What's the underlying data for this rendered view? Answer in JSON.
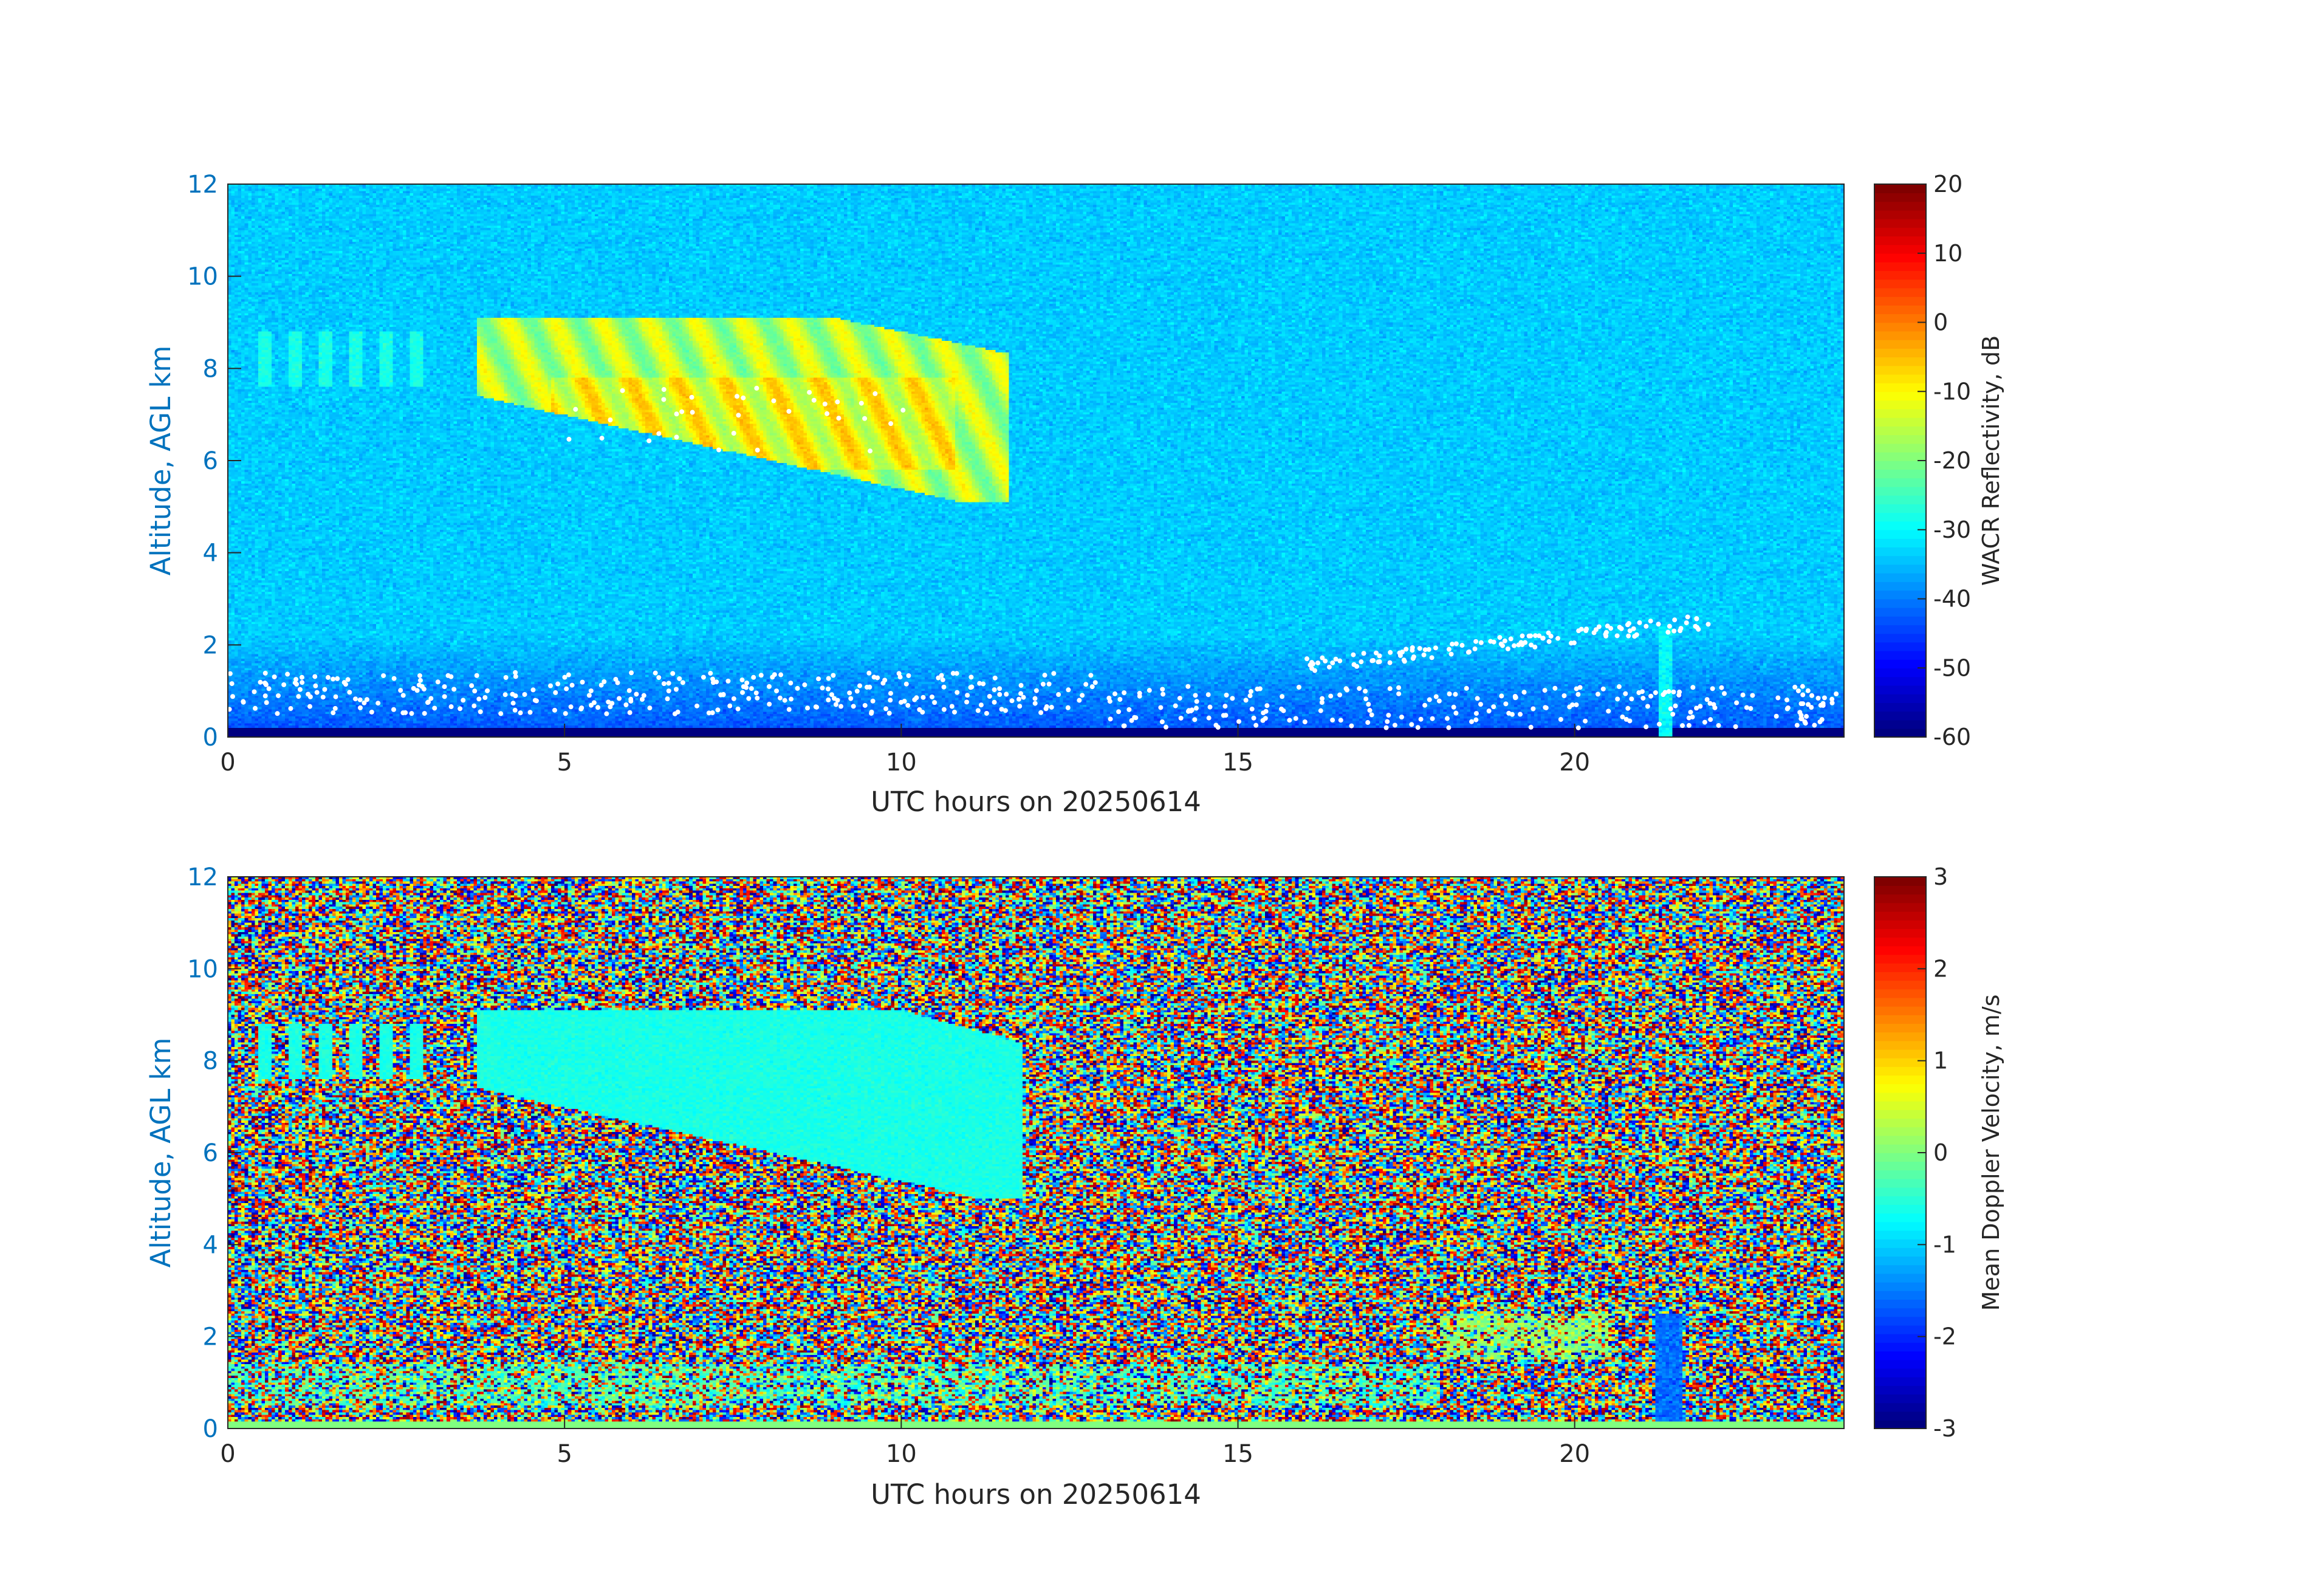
{
  "chart_data": [
    {
      "type": "heatmap",
      "xlabel": "UTC hours on 20250614",
      "ylabel": "Altitude, AGL km",
      "xlim": [
        0,
        24
      ],
      "ylim": [
        0,
        12
      ],
      "xticks": [
        0,
        5,
        10,
        15,
        20
      ],
      "yticks": [
        0,
        2,
        4,
        6,
        8,
        10,
        12
      ],
      "grid": false,
      "colorbar": {
        "label": "WACR Reflectivity, dB",
        "range": [
          -60,
          20
        ],
        "ticks": [
          -60,
          -50,
          -40,
          -30,
          -20,
          -10,
          0,
          10,
          20
        ],
        "colormap": "jet"
      },
      "features": [
        {
          "name": "background noise",
          "x": [
            0,
            24
          ],
          "y": [
            0.2,
            12
          ],
          "value": -35
        },
        {
          "name": "near-surface low noise band",
          "x": [
            0,
            24
          ],
          "y": [
            0,
            0.2
          ],
          "value": -60
        },
        {
          "name": "ice cloud layer",
          "x": [
            3.7,
            11.6
          ],
          "y": [
            5.1,
            9.2
          ],
          "value": -12
        },
        {
          "name": "cirrus streaks",
          "x": [
            0.2,
            3.0
          ],
          "y": [
            7.6,
            8.8
          ],
          "value": -28
        },
        {
          "name": "boundary-layer echoes",
          "x": [
            0,
            24
          ],
          "y": [
            0.4,
            1.6
          ],
          "value": "white points"
        },
        {
          "name": "elevated echoes",
          "x": [
            16,
            22
          ],
          "y": [
            1.3,
            2.5
          ],
          "value": "white points"
        },
        {
          "name": "precipitation shaft",
          "x": [
            21.2,
            21.5
          ],
          "y": [
            0,
            2.4
          ],
          "value": -30
        }
      ]
    },
    {
      "type": "heatmap",
      "xlabel": "UTC hours on 20250614",
      "ylabel": "Altitude, AGL km",
      "xlim": [
        0,
        24
      ],
      "ylim": [
        0,
        12
      ],
      "xticks": [
        0,
        5,
        10,
        15,
        20
      ],
      "yticks": [
        0,
        2,
        4,
        6,
        8,
        10,
        12
      ],
      "grid": false,
      "colorbar": {
        "label": "Mean Doppler Velocity, m/s",
        "range": [
          -3,
          3
        ],
        "ticks": [
          -3,
          -2,
          -1,
          0,
          1,
          2,
          3
        ],
        "colormap": "jet"
      },
      "features": [
        {
          "name": "random noise velocities",
          "x": [
            0,
            24
          ],
          "y": [
            0.2,
            12
          ],
          "value": "random -3 to 3"
        },
        {
          "name": "ice cloud fall speeds",
          "x": [
            3.7,
            11.8
          ],
          "y": [
            5.0,
            9.1
          ],
          "value": -0.6
        },
        {
          "name": "cirrus streaks",
          "x": [
            0.2,
            3.0
          ],
          "y": [
            7.6,
            8.8
          ],
          "value": -0.6
        },
        {
          "name": "low cloud layer",
          "x": [
            0,
            18
          ],
          "y": [
            0.5,
            1.4
          ],
          "value": -0.3
        },
        {
          "name": "elevated layer",
          "x": [
            18,
            20.5
          ],
          "y": [
            1.5,
            2.5
          ],
          "value": -0.2
        },
        {
          "name": "precipitation shaft",
          "x": [
            21.2,
            21.6
          ],
          "y": [
            0,
            2.5
          ],
          "value": -1.6
        }
      ]
    }
  ]
}
